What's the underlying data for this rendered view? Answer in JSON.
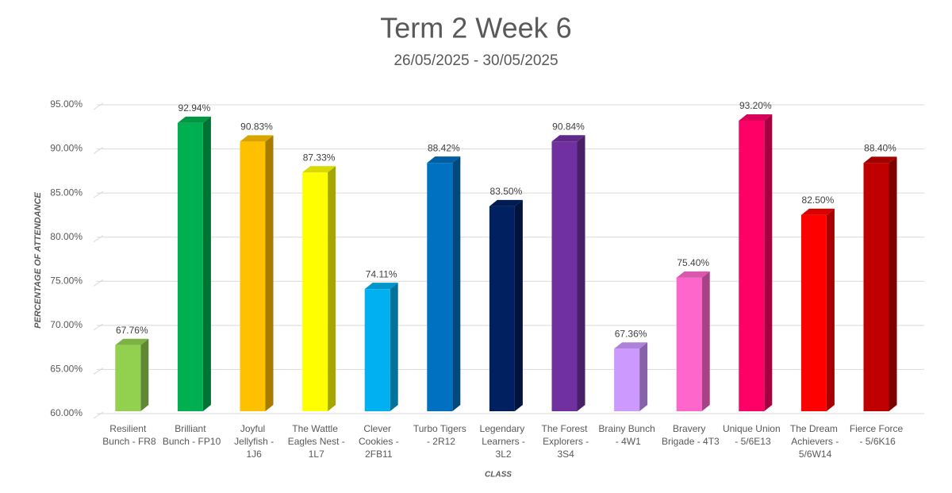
{
  "chart_data": {
    "type": "bar3d",
    "title": "Term 2 Week 6",
    "subtitle": "26/05/2025 - 30/05/2025",
    "y_label": "PERCENTAGE OF ATTENDANCE",
    "x_label": "CLASS",
    "categories": [
      "Resilient Bunch - FR8",
      "Brilliant Bunch - FP10",
      "Joyful Jellyfish - 1J6",
      "The Wattle Eagles Nest - 1L7",
      "Clever Cookies - 2FB11",
      "Turbo Tigers - 2R12",
      "Legendary Learners - 3L2",
      "The Forest Explorers - 3S4",
      "Brainy Bunch - 4W1",
      "Bravery Brigade - 4T3",
      "Unique Union - 5/6E13",
      "The Dream Achievers - 5/6W14",
      "Fierce Force - 5/6K16"
    ],
    "values": [
      67.76,
      92.94,
      90.83,
      87.33,
      74.11,
      88.42,
      83.5,
      90.84,
      67.36,
      75.4,
      93.2,
      82.5,
      88.4
    ],
    "value_labels": [
      "67.76%",
      "92.94%",
      "90.83%",
      "87.33%",
      "74.11%",
      "88.42%",
      "83.50%",
      "90.84%",
      "67.36%",
      "75.40%",
      "93.20%",
      "82.50%",
      "88.40%"
    ],
    "colors": [
      "#92d050",
      "#00b050",
      "#ffc000",
      "#ffff00",
      "#00b0f0",
      "#0070c0",
      "#002060",
      "#7030a0",
      "#cc99ff",
      "#ff66cc",
      "#ff0066",
      "#ff0000",
      "#c00000"
    ],
    "ylim": [
      60,
      95
    ],
    "yticks": [
      {
        "value": 60,
        "label": "60.00%"
      },
      {
        "value": 65,
        "label": "65.00%"
      },
      {
        "value": 70,
        "label": "70.00%"
      },
      {
        "value": 75,
        "label": "75.00%"
      },
      {
        "value": 80,
        "label": "80.00%"
      },
      {
        "value": 85,
        "label": "85.00%"
      },
      {
        "value": 90,
        "label": "90.00%"
      },
      {
        "value": 95,
        "label": "95.00%"
      }
    ],
    "grid": true
  }
}
